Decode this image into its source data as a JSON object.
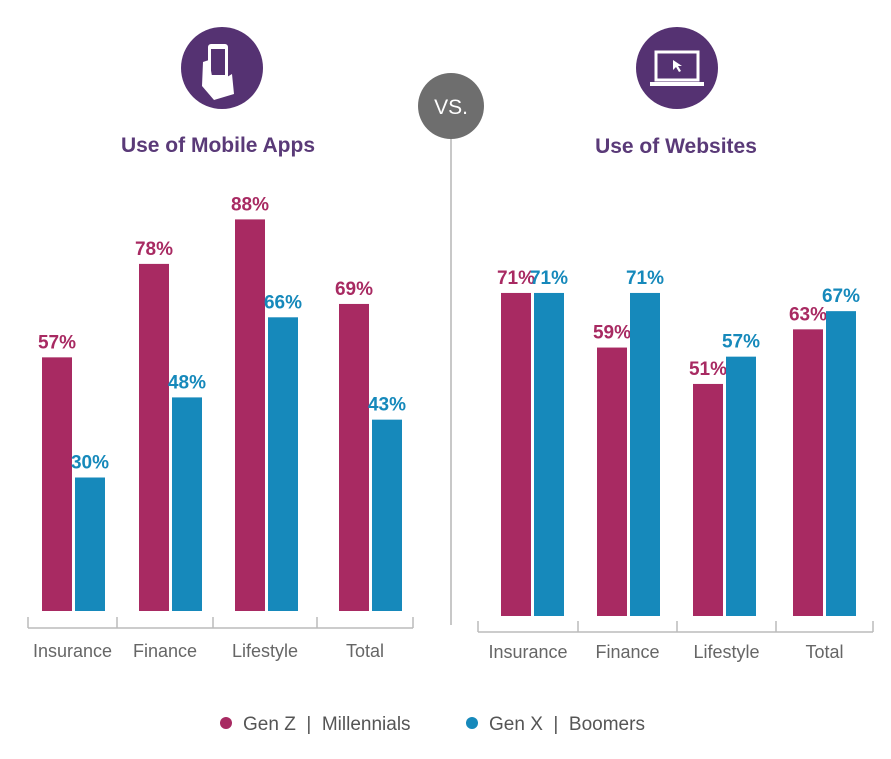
{
  "vs_label": "VS.",
  "chart_data": [
    {
      "type": "bar",
      "title": "Use of Mobile Apps",
      "icon": "phone-in-hand-icon",
      "categories": [
        "Insurance",
        "Finance",
        "Lifestyle",
        "Total"
      ],
      "series": [
        {
          "name": "Gen Z | Millennials",
          "values": [
            57,
            78,
            88,
            69
          ],
          "labels": [
            "57%",
            "78%",
            "88%",
            "69%"
          ]
        },
        {
          "name": "Gen X | Boomers",
          "values": [
            30,
            48,
            66,
            43
          ],
          "labels": [
            "30%",
            "48%",
            "66%",
            "43%"
          ]
        }
      ],
      "ylim": [
        0,
        100
      ],
      "grid": false
    },
    {
      "type": "bar",
      "title": "Use of Websites",
      "icon": "laptop-cursor-icon",
      "categories": [
        "Insurance",
        "Finance",
        "Lifestyle",
        "Total"
      ],
      "series": [
        {
          "name": "Gen Z | Millennials",
          "values": [
            71,
            59,
            51,
            63
          ],
          "labels": [
            "71%",
            "59%",
            "51%",
            "63%"
          ]
        },
        {
          "name": "Gen X | Boomers",
          "values": [
            71,
            71,
            57,
            67
          ],
          "labels": [
            "71%",
            "71%",
            "57%",
            "67%"
          ]
        }
      ],
      "ylim": [
        0,
        100
      ],
      "grid": false
    }
  ],
  "legend": {
    "placement": "bottom",
    "items": [
      {
        "label": "Gen Z  |  Millennials",
        "color": "#a82a62"
      },
      {
        "label": "Gen X  |  Boomers",
        "color": "#1689bb"
      }
    ]
  },
  "colors": {
    "series0": "#a82a62",
    "series1": "#1689bb",
    "title": "#5a3a78",
    "icon_bg": "#553272",
    "vs_bg": "#6e6e6e"
  }
}
